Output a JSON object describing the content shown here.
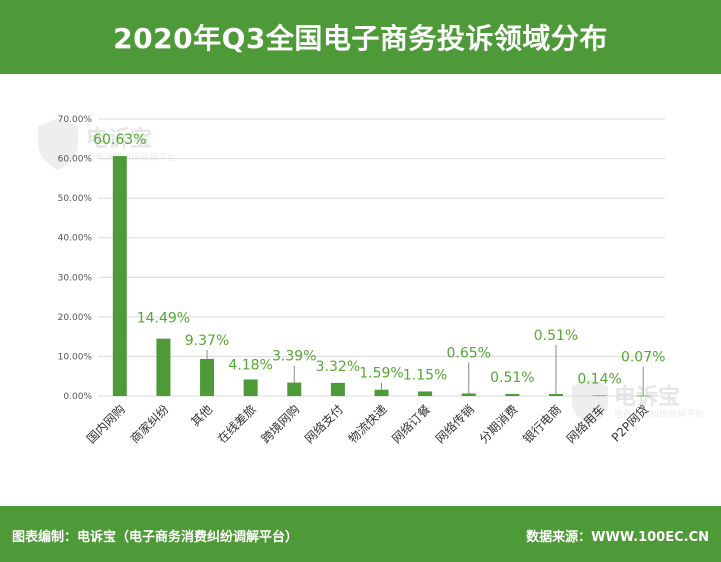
{
  "header": {
    "title": "2020年Q3全国电子商务投诉领域分布"
  },
  "footer": {
    "left": "图表编制：电诉宝（电子商务消费纠纷调解平台）",
    "right": "数据来源：WWW.100EC.CN"
  },
  "watermark": {
    "brand": "电诉宝",
    "sub": "电商消费纠纷调解平台"
  },
  "chart_data": {
    "type": "bar",
    "title": "2020年Q3全国电子商务投诉领域分布",
    "xlabel": "",
    "ylabel": "",
    "ylim": [
      0,
      70
    ],
    "yticks": [
      0,
      10,
      20,
      30,
      40,
      50,
      60,
      70
    ],
    "ytick_labels": [
      "0.00%",
      "10.00%",
      "20.00%",
      "30.00%",
      "40.00%",
      "50.00%",
      "60.00%",
      "70.00%"
    ],
    "grid": true,
    "legend": "none",
    "bar_color": "#4f9a38",
    "label_color": "#55a832",
    "categories": [
      "国内网购",
      "商家纠纷",
      "其他",
      "在线差旅",
      "跨境网购",
      "网络支付",
      "物流快递",
      "网络订餐",
      "网络传销",
      "分期消费",
      "银行电商",
      "网络用车",
      "P2P网贷"
    ],
    "values": [
      60.63,
      14.49,
      9.37,
      4.18,
      3.39,
      3.32,
      1.59,
      1.15,
      0.65,
      0.51,
      0.51,
      0.14,
      0.07
    ],
    "data_labels": [
      "60.63%",
      "14.49%",
      "9.37%",
      "4.18%",
      "3.39%",
      "3.32%",
      "1.59%",
      "1.15%",
      "0.65%",
      "0.51%",
      "0.51%",
      "0.14%",
      "0.07%"
    ]
  }
}
